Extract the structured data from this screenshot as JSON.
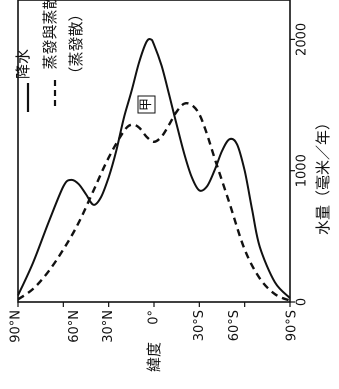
{
  "chart_data": {
    "type": "line",
    "orientation": "rotated-90",
    "x_axis": {
      "label": "緯度",
      "ticks": [
        {
          "label": "90°N",
          "value": 90
        },
        {
          "label": "60°N",
          "value": 60
        },
        {
          "label": "30°N",
          "value": 30
        },
        {
          "label": "0°",
          "value": 0
        },
        {
          "label": "30°S",
          "value": -30
        },
        {
          "label": "60°S",
          "value": -60
        },
        {
          "label": "90°S",
          "value": -90
        }
      ],
      "range": [
        90,
        -90
      ]
    },
    "y_axis": {
      "label": "水量（毫米／年）",
      "ticks": [
        {
          "label": "0",
          "value": 0
        },
        {
          "label": "1000",
          "value": 1000
        },
        {
          "label": "2000",
          "value": 2000
        }
      ],
      "range": [
        0,
        2300
      ]
    },
    "series": [
      {
        "name": "降水",
        "style": "solid",
        "points": [
          [
            90,
            50
          ],
          [
            80,
            300
          ],
          [
            70,
            600
          ],
          [
            60,
            880
          ],
          [
            55,
            930
          ],
          [
            50,
            900
          ],
          [
            45,
            820
          ],
          [
            40,
            740
          ],
          [
            35,
            800
          ],
          [
            30,
            950
          ],
          [
            25,
            1150
          ],
          [
            20,
            1400
          ],
          [
            15,
            1600
          ],
          [
            10,
            1820
          ],
          [
            5,
            1980
          ],
          [
            2,
            2000
          ],
          [
            0,
            1960
          ],
          [
            -5,
            1800
          ],
          [
            -10,
            1580
          ],
          [
            -15,
            1350
          ],
          [
            -20,
            1130
          ],
          [
            -25,
            950
          ],
          [
            -30,
            850
          ],
          [
            -35,
            880
          ],
          [
            -40,
            1000
          ],
          [
            -45,
            1150
          ],
          [
            -50,
            1240
          ],
          [
            -55,
            1200
          ],
          [
            -60,
            1000
          ],
          [
            -65,
            700
          ],
          [
            -70,
            420
          ],
          [
            -80,
            150
          ],
          [
            -90,
            30
          ]
        ]
      },
      {
        "name": "蒸發與蒸散（蒸發散）",
        "style": "dashed",
        "points": [
          [
            90,
            20
          ],
          [
            80,
            100
          ],
          [
            70,
            230
          ],
          [
            60,
            400
          ],
          [
            50,
            600
          ],
          [
            40,
            850
          ],
          [
            30,
            1100
          ],
          [
            20,
            1300
          ],
          [
            15,
            1350
          ],
          [
            10,
            1330
          ],
          [
            5,
            1260
          ],
          [
            0,
            1220
          ],
          [
            -5,
            1260
          ],
          [
            -10,
            1350
          ],
          [
            -15,
            1450
          ],
          [
            -20,
            1510
          ],
          [
            -25,
            1500
          ],
          [
            -30,
            1430
          ],
          [
            -35,
            1280
          ],
          [
            -40,
            1100
          ],
          [
            -50,
            750
          ],
          [
            -60,
            400
          ],
          [
            -70,
            180
          ],
          [
            -80,
            60
          ],
          [
            -90,
            10
          ]
        ]
      }
    ]
  },
  "legend": {
    "items": [
      {
        "line": "solid",
        "lines": [
          "降水"
        ]
      },
      {
        "line": "dashed",
        "lines": [
          "蒸發與蒸散",
          "（蒸發散）"
        ]
      }
    ]
  },
  "marker_label": "甲"
}
